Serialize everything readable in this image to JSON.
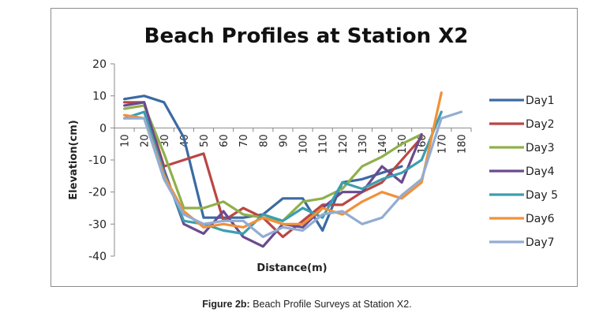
{
  "caption": {
    "bold": "Figure 2b:",
    "text": " Beach Profile Surveys at Station X2."
  },
  "chart_data": {
    "type": "line",
    "title": "Beach Profiles at Station X2",
    "xlabel": "Distance(m)",
    "ylabel": "Elevation(cm)",
    "ylim": [
      -40,
      20
    ],
    "yticks": [
      20,
      10,
      0,
      -10,
      -20,
      -30,
      -40
    ],
    "categories": [
      "10",
      "20",
      "30",
      "40",
      "50",
      "60",
      "70",
      "80",
      "90",
      "100",
      "110",
      "120",
      "130",
      "140",
      "150",
      "160",
      "170",
      "180"
    ],
    "legend_position": "right",
    "grid": false,
    "series": [
      {
        "name": "Day1",
        "color": "#3b6aa3",
        "values": [
          9,
          10,
          8,
          -3,
          -28,
          -28,
          -28,
          -27,
          -22,
          -22,
          -32,
          -17,
          -16,
          -14,
          -12,
          null,
          null,
          null
        ]
      },
      {
        "name": "Day2",
        "color": "#b94744",
        "values": [
          8,
          8,
          -12,
          -10,
          -8,
          -29,
          -25,
          -28,
          -34,
          -29,
          -24,
          -24,
          -20,
          -17,
          -10,
          -3,
          null,
          null
        ]
      },
      {
        "name": "Day3",
        "color": "#8fb04b",
        "values": [
          6,
          7,
          -8,
          -25,
          -25,
          -23,
          -27,
          -28,
          -29,
          -23,
          -22,
          -19,
          -12,
          -9,
          -5,
          -2,
          null,
          null
        ]
      },
      {
        "name": "Day4",
        "color": "#6b4a8f",
        "values": [
          7,
          8,
          -13,
          -30,
          -33,
          -26,
          -34,
          -37,
          -30,
          -31,
          -25,
          -20,
          -20,
          -12,
          -17,
          -2,
          null,
          null
        ]
      },
      {
        "name": "Day 5",
        "color": "#3b9fb0",
        "values": [
          3,
          5,
          -14,
          -29,
          -30,
          -32,
          -33,
          -27,
          -29,
          -25,
          -28,
          -17,
          -19,
          -16,
          -14,
          -10,
          5,
          null
        ]
      },
      {
        "name": "Day6",
        "color": "#f0913a",
        "values": [
          4,
          3,
          -15,
          -26,
          -31,
          -30,
          -31,
          -28,
          -30,
          -30,
          -25,
          -27,
          -23,
          -20,
          -22,
          -17,
          11,
          null
        ]
      },
      {
        "name": "Day7",
        "color": "#93acd2",
        "values": [
          3,
          3,
          -16,
          -27,
          -30,
          -29,
          -29,
          -34,
          -31,
          -32,
          -27,
          -26,
          -30,
          -28,
          -21,
          -16,
          3,
          5
        ]
      }
    ]
  }
}
